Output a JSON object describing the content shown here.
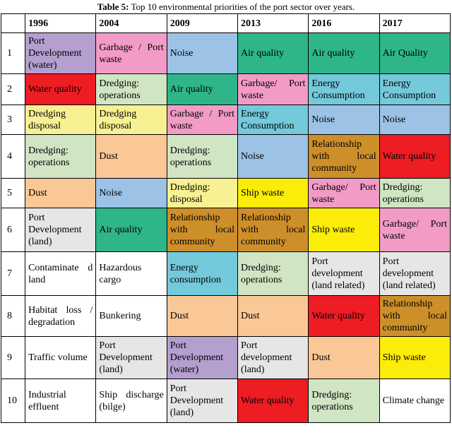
{
  "caption": {
    "label": "Table 5:",
    "text": " Top 10 environmental priorities of the port sector over years."
  },
  "headers": [
    "",
    "1996",
    "2004",
    "2009",
    "2013",
    "2016",
    "2017"
  ],
  "rows": [
    {
      "rank": "1",
      "cells": [
        {
          "text": "Port Development (water)",
          "color": "purple"
        },
        {
          "text": "Garbage / Port waste",
          "color": "pink"
        },
        {
          "text": "Noise",
          "color": "blue"
        },
        {
          "text": "Air quality",
          "color": "green"
        },
        {
          "text": "Air quality",
          "color": "green"
        },
        {
          "text": "Air Quality",
          "color": "green"
        }
      ]
    },
    {
      "rank": "2",
      "cells": [
        {
          "text": "Water quality",
          "color": "red"
        },
        {
          "text": "Dredging: operations",
          "color": "lgreen"
        },
        {
          "text": "Air quality",
          "color": "green"
        },
        {
          "text": "Garbage/ Port waste",
          "color": "pink"
        },
        {
          "text": "Energy Consumption",
          "color": "teal"
        },
        {
          "text": "Energy Consumption",
          "color": "teal"
        }
      ]
    },
    {
      "rank": "3",
      "cells": [
        {
          "text": "Dredging disposal",
          "color": "yellow"
        },
        {
          "text": "Dredging disposal",
          "color": "yellow"
        },
        {
          "text": "Garbage / Port waste",
          "color": "pink"
        },
        {
          "text": "Energy Consumption",
          "color": "teal"
        },
        {
          "text": "Noise",
          "color": "blue"
        },
        {
          "text": "Noise",
          "color": "blue"
        }
      ]
    },
    {
      "rank": "4",
      "cells": [
        {
          "text": "Dredging: operations",
          "color": "lgreen"
        },
        {
          "text": "Dust",
          "color": "orange"
        },
        {
          "text": "Dredging: operations",
          "color": "lgreen"
        },
        {
          "text": "Noise",
          "color": "blue"
        },
        {
          "text": "Relationship with local community",
          "color": "brown"
        },
        {
          "text": "Water quality",
          "color": "red"
        }
      ]
    },
    {
      "rank": "5",
      "cells": [
        {
          "text": "Dust",
          "color": "orange"
        },
        {
          "text": "Noise",
          "color": "blue"
        },
        {
          "text": "Dredging: disposal",
          "color": "yellow"
        },
        {
          "text": "Ship waste",
          "color": "bright"
        },
        {
          "text": "Garbage/ Port waste",
          "color": "pink"
        },
        {
          "text": "Dredging: operations",
          "color": "lgreen"
        }
      ]
    },
    {
      "rank": "6",
      "cells": [
        {
          "text": "Port Development (land)",
          "color": "grey"
        },
        {
          "text": "Air quality",
          "color": "green"
        },
        {
          "text": "Relationship with local community",
          "color": "brown"
        },
        {
          "text": "Relationship with local community",
          "color": "brown"
        },
        {
          "text": "Ship waste",
          "color": "bright"
        },
        {
          "text": "Garbage/ Port waste",
          "color": "pink"
        }
      ]
    },
    {
      "rank": "7",
      "cells": [
        {
          "text": "Contaminate d land",
          "color": "white"
        },
        {
          "text": "Hazardous cargo",
          "color": "white"
        },
        {
          "text": "Energy consumption",
          "color": "teal"
        },
        {
          "text": "Dredging: operations",
          "color": "lgreen"
        },
        {
          "text": "Port development (land related)",
          "color": "grey"
        },
        {
          "text": "Port development (land related)",
          "color": "grey"
        }
      ]
    },
    {
      "rank": "8",
      "cells": [
        {
          "text": "Habitat loss / degradation",
          "color": "white"
        },
        {
          "text": "Bunkering",
          "color": "white"
        },
        {
          "text": "Dust",
          "color": "orange"
        },
        {
          "text": "Dust",
          "color": "orange"
        },
        {
          "text": "Water quality",
          "color": "red"
        },
        {
          "text": "Relationship with local community",
          "color": "brown"
        }
      ]
    },
    {
      "rank": "9",
      "cells": [
        {
          "text": "Traffic volume",
          "color": "white"
        },
        {
          "text": "Port Development (land)",
          "color": "grey"
        },
        {
          "text": "Port Development (water)",
          "color": "purple"
        },
        {
          "text": "Port development (land)",
          "color": "grey"
        },
        {
          "text": "Dust",
          "color": "orange"
        },
        {
          "text": "Ship waste",
          "color": "bright"
        }
      ]
    },
    {
      "rank": "10",
      "cells": [
        {
          "text": "Industrial effluent",
          "color": "white"
        },
        {
          "text": "Ship discharge (bilge)",
          "color": "white"
        },
        {
          "text": "Port Development (land)",
          "color": "grey"
        },
        {
          "text": "Water quality",
          "color": "red"
        },
        {
          "text": "Dredging: operations",
          "color": "lgreen"
        },
        {
          "text": "Climate change",
          "color": "white"
        }
      ]
    }
  ]
}
